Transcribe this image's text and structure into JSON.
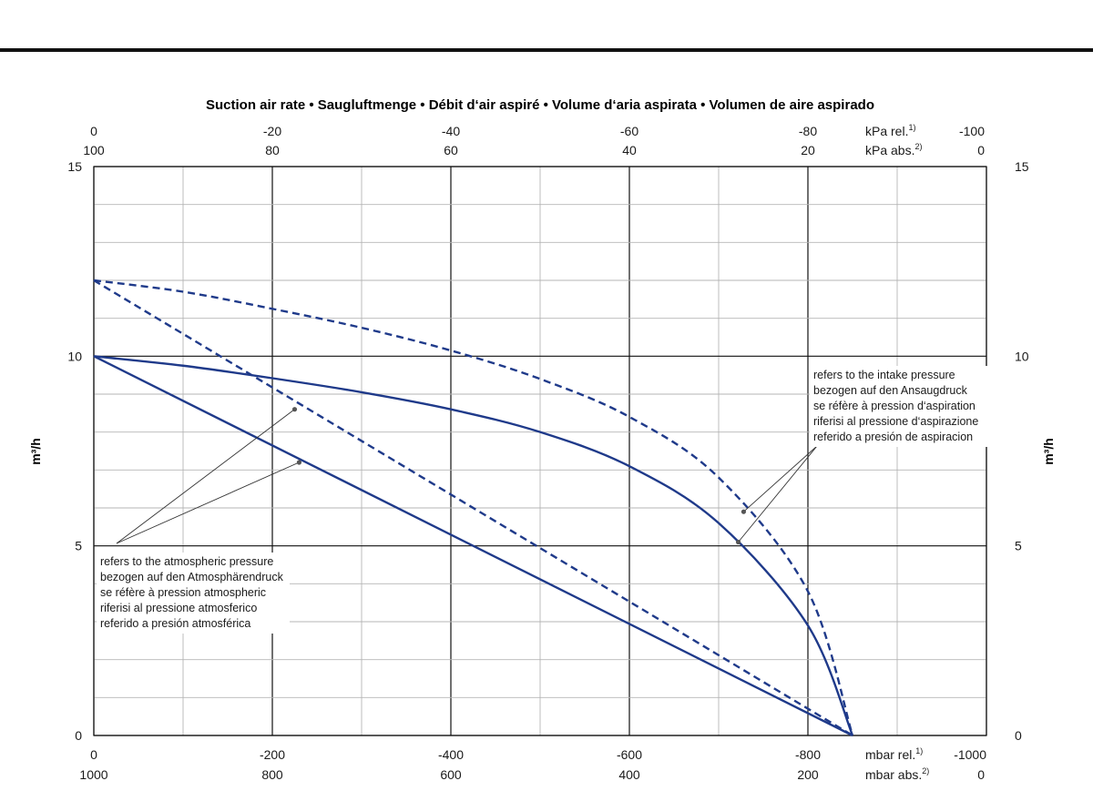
{
  "chart_data": {
    "type": "line",
    "title": "Suction air rate  •  Saugluftmenge  •  Débit d‘air aspiré  •  Volume d‘aria aspirata  •  Volumen de aire aspirado",
    "ylabel": "m³/h",
    "ylabel_right": "m³/h",
    "xlim": [
      0,
      -1000
    ],
    "ylim": [
      0,
      15
    ],
    "grid": true,
    "axes": {
      "bottom_primary": {
        "ticks": [
          "0",
          "-200",
          "-400",
          "-600",
          "-800",
          "-1000"
        ],
        "unit": "mbar rel.",
        "footnote": "1)"
      },
      "bottom_secondary": {
        "ticks": [
          "1000",
          "800",
          "600",
          "400",
          "200",
          "0"
        ],
        "unit": "mbar abs.",
        "footnote": "2)"
      },
      "top_primary": {
        "ticks": [
          "0",
          "-20",
          "-40",
          "-60",
          "-80",
          "-100"
        ],
        "unit": "kPa rel.",
        "footnote": "1)"
      },
      "top_secondary": {
        "ticks": [
          "100",
          "80",
          "60",
          "40",
          "20",
          "0"
        ],
        "unit": "kPa abs.",
        "footnote": "2)"
      },
      "left": {
        "ticks": [
          "0",
          "5",
          "10",
          "15"
        ]
      },
      "right": {
        "ticks": [
          "0",
          "5",
          "10",
          "15"
        ]
      }
    },
    "series": [
      {
        "style": "solid",
        "basis": "intake",
        "x": [
          0,
          -100,
          -200,
          -300,
          -400,
          -500,
          -600,
          -700,
          -800,
          -850
        ],
        "y": [
          10,
          9.75,
          9.42,
          9.05,
          8.6,
          8.0,
          7.1,
          5.6,
          2.9,
          0
        ]
      },
      {
        "style": "solid",
        "basis": "atmospheric",
        "x": [
          0,
          -850
        ],
        "y": [
          10,
          0
        ]
      },
      {
        "style": "dashed",
        "basis": "intake",
        "x": [
          0,
          -100,
          -200,
          -300,
          -400,
          -500,
          -600,
          -700,
          -800,
          -850
        ],
        "y": [
          12,
          11.7,
          11.25,
          10.75,
          10.15,
          9.4,
          8.4,
          6.8,
          3.8,
          0
        ]
      },
      {
        "style": "dashed",
        "basis": "atmospheric",
        "x": [
          0,
          -850
        ],
        "y": [
          12,
          0
        ]
      }
    ],
    "annotations": {
      "intake": {
        "lines": [
          "refers to the intake pressure",
          "bezogen auf den Ansaugdruck",
          "se réfère à pression d‘aspiration",
          "riferisi al pressione d‘aspirazione",
          "referido a presión de aspiracion"
        ],
        "points": [
          [
            -728,
            5.9
          ],
          [
            -722,
            5.1
          ]
        ]
      },
      "atmospheric": {
        "lines": [
          "refers to the atmospheric pressure",
          "bezogen auf den Atmosphärendruck",
          "se réfère à pression atmospheric",
          "riferisi al pressione atmosferico",
          "referido a presión atmosférica"
        ],
        "points": [
          [
            -225,
            8.6
          ],
          [
            -230,
            7.2
          ]
        ]
      }
    },
    "colors": {
      "curve": "#1f3a8a",
      "grid_major": "#111111",
      "grid_minor": "#b5b5b5"
    }
  }
}
